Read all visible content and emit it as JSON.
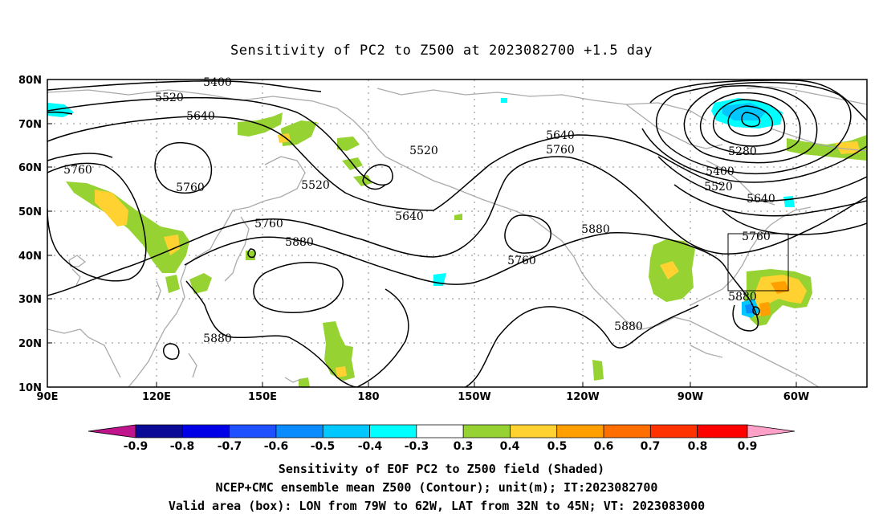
{
  "title": "Sensitivity of PC2 to Z500 at 2023082700 +1.5 day",
  "axes": {
    "lat_labels": [
      "80N",
      "70N",
      "60N",
      "50N",
      "40N",
      "30N",
      "20N",
      "10N"
    ],
    "lon_labels": [
      "90E",
      "120E",
      "150E",
      "180",
      "150W",
      "120W",
      "90W",
      "60W"
    ]
  },
  "contour_labels": {
    "c5400a": "5400",
    "c5520a": "5520",
    "c5640a": "5640",
    "c5760a": "5760",
    "c5760b": "5760",
    "c5520b": "5520",
    "c5520c": "5520",
    "c5640b": "5640",
    "c5760c": "5760",
    "c5880a": "5880",
    "c5880b": "5880",
    "c5640c": "5640",
    "c5760d": "5760",
    "c5880c": "5880",
    "c5760e": "5760",
    "c5880d": "5880",
    "c5280": "5280",
    "c5400b": "5400",
    "c5520d": "5520",
    "c5640d": "5640",
    "c5760f": "5760",
    "c5880e": "5880"
  },
  "colorbar": {
    "labels": [
      "-0.9",
      "-0.8",
      "-0.7",
      "-0.6",
      "-0.5",
      "-0.4",
      "-0.3",
      "0.3",
      "0.4",
      "0.5",
      "0.6",
      "0.7",
      "0.8",
      "0.9"
    ],
    "colors": {
      "lt_-0.9": "#c0148c",
      "-0.9_-0.8": "#0a0a96",
      "-0.8_-0.7": "#0000e6",
      "-0.7_-0.6": "#1e50ff",
      "-0.6_-0.5": "#0a8cff",
      "-0.5_-0.4": "#00c8ff",
      "-0.4_-0.3": "#00ffff",
      "-0.3_0.3": "#ffffff",
      "0.3_0.4": "#96d232",
      "0.4_0.5": "#ffd232",
      "0.5_0.6": "#ffa000",
      "0.6_0.7": "#ff6e00",
      "0.7_0.8": "#ff3200",
      "0.8_0.9": "#ff0000",
      "gt_0.9": "#ffa0c8"
    }
  },
  "captions": {
    "line1": "Sensitivity of EOF PC2 to Z500 field (Shaded)",
    "line2": "NCEP+CMC ensemble mean Z500 (Contour); unit(m); IT:2023082700",
    "line3": "Valid area (box): LON from 79W to 62W, LAT from 32N to 45N; VT: 2023083000"
  },
  "valid_box": {
    "lon_min": "79W",
    "lon_max": "62W",
    "lat_min": "32N",
    "lat_max": "45N"
  }
}
